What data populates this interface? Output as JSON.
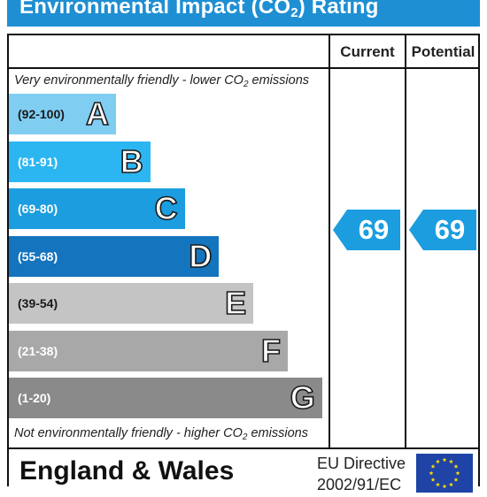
{
  "title": {
    "main": "Environmental Impact (CO",
    "sub": "2",
    "rest": ") Rating"
  },
  "columns": {
    "current": "Current",
    "potential": "Potential"
  },
  "notes": {
    "top_pre": "Very environmentally friendly - lower CO",
    "top_sub": "2",
    "top_post": " emissions",
    "bottom_pre": "Not environmentally friendly - higher CO",
    "bottom_sub": "2",
    "bottom_post": " emissions"
  },
  "chart_data": {
    "type": "bar",
    "title": "Environmental Impact (CO2) Rating",
    "categories": [
      "A",
      "B",
      "C",
      "D",
      "E",
      "F",
      "G"
    ],
    "bands": [
      {
        "letter": "A",
        "range": "(92-100)",
        "color": "#80cdf2"
      },
      {
        "letter": "B",
        "range": "(81-91)",
        "color": "#2bb6f1"
      },
      {
        "letter": "C",
        "range": "(69-80)",
        "color": "#1c9ddf"
      },
      {
        "letter": "D",
        "range": "(55-68)",
        "color": "#1474bd"
      },
      {
        "letter": "E",
        "range": "(39-54)",
        "color": "#c4c4c4"
      },
      {
        "letter": "F",
        "range": "(21-38)",
        "color": "#a8a8a8"
      },
      {
        "letter": "G",
        "range": "(1-20)",
        "color": "#8a8a8a"
      }
    ],
    "current": {
      "label": "Current",
      "value": 69,
      "band": "C"
    },
    "potential": {
      "label": "Potential",
      "value": 69,
      "band": "C"
    }
  },
  "colors": {
    "title_bg": "#1f8fd3",
    "rating_arrow": "#1c9ddf",
    "eu_flag": "#1f44a6",
    "eu_star": "#ffde00"
  },
  "footer": {
    "region": "England & Wales",
    "directive_line1": "EU Directive",
    "directive_line2": "2002/91/EC",
    "flag_icon": "eu-flag-icon"
  }
}
